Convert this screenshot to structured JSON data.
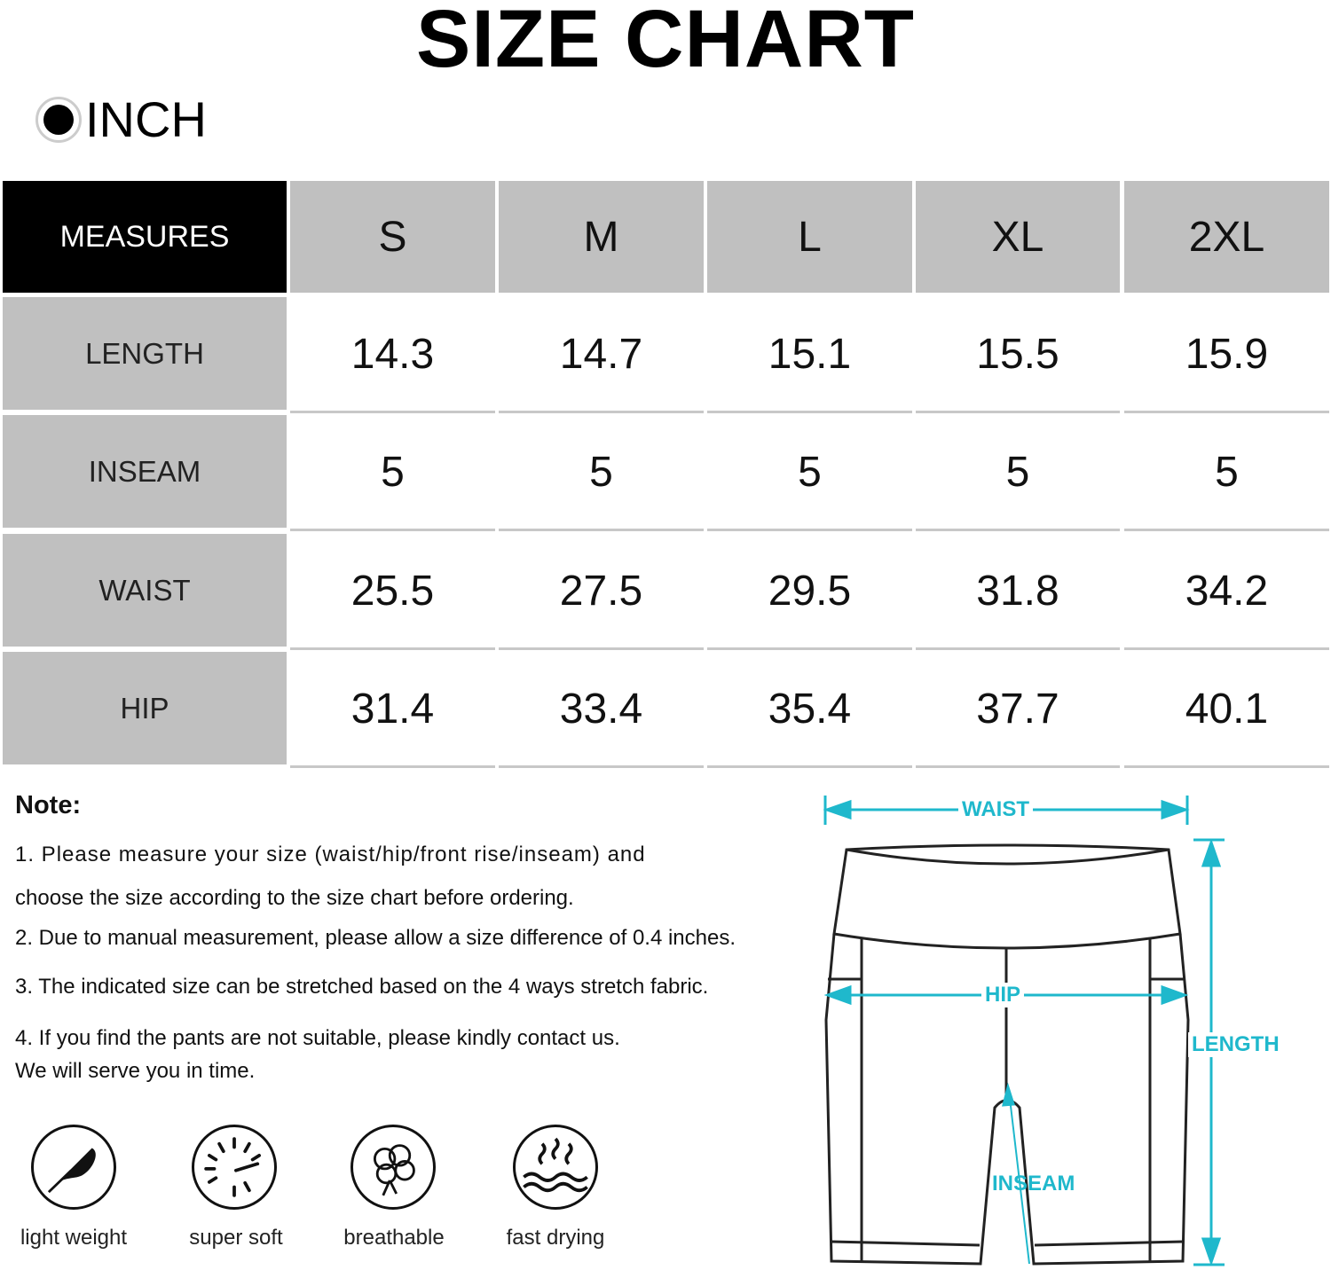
{
  "title": "SIZE CHART",
  "unit": {
    "label": "INCH",
    "selected": true
  },
  "table": {
    "header": [
      "MEASURES",
      "S",
      "M",
      "L",
      "XL",
      "2XL"
    ],
    "rows": [
      {
        "label": "LENGTH",
        "values": [
          "14.3",
          "14.7",
          "15.1",
          "15.5",
          "15.9"
        ]
      },
      {
        "label": "INSEAM",
        "values": [
          "5",
          "5",
          "5",
          "5",
          "5"
        ]
      },
      {
        "label": "WAIST",
        "values": [
          "25.5",
          "27.5",
          "29.5",
          "31.8",
          "34.2"
        ]
      },
      {
        "label": "HIP",
        "values": [
          "31.4",
          "33.4",
          "35.4",
          "37.7",
          "40.1"
        ]
      }
    ]
  },
  "notes": {
    "heading": "Note:",
    "lines": [
      "1. Please measure your size (waist/hip/front rise/inseam) and",
      "choose  the size according to the size chart before ordering.",
      "2. Due to manual measurement, please allow a size difference of 0.4 inches.",
      "3. The indicated size can be stretched based on the 4 ways stretch fabric.",
      "4. If you find the pants are not suitable, please kindly contact us.",
      "We will serve you in time."
    ]
  },
  "features": [
    {
      "icon": "feather-icon",
      "label": "light weight"
    },
    {
      "icon": "soft-icon",
      "label": "super soft"
    },
    {
      "icon": "cotton-icon",
      "label": "breathable"
    },
    {
      "icon": "fast-drying-icon",
      "label": "fast drying"
    }
  ],
  "diagram": {
    "waist": "WAIST",
    "hip": "HIP",
    "length": "LENGTH",
    "inseam": "INSEAM",
    "accent_color": "#1fb8cc"
  }
}
